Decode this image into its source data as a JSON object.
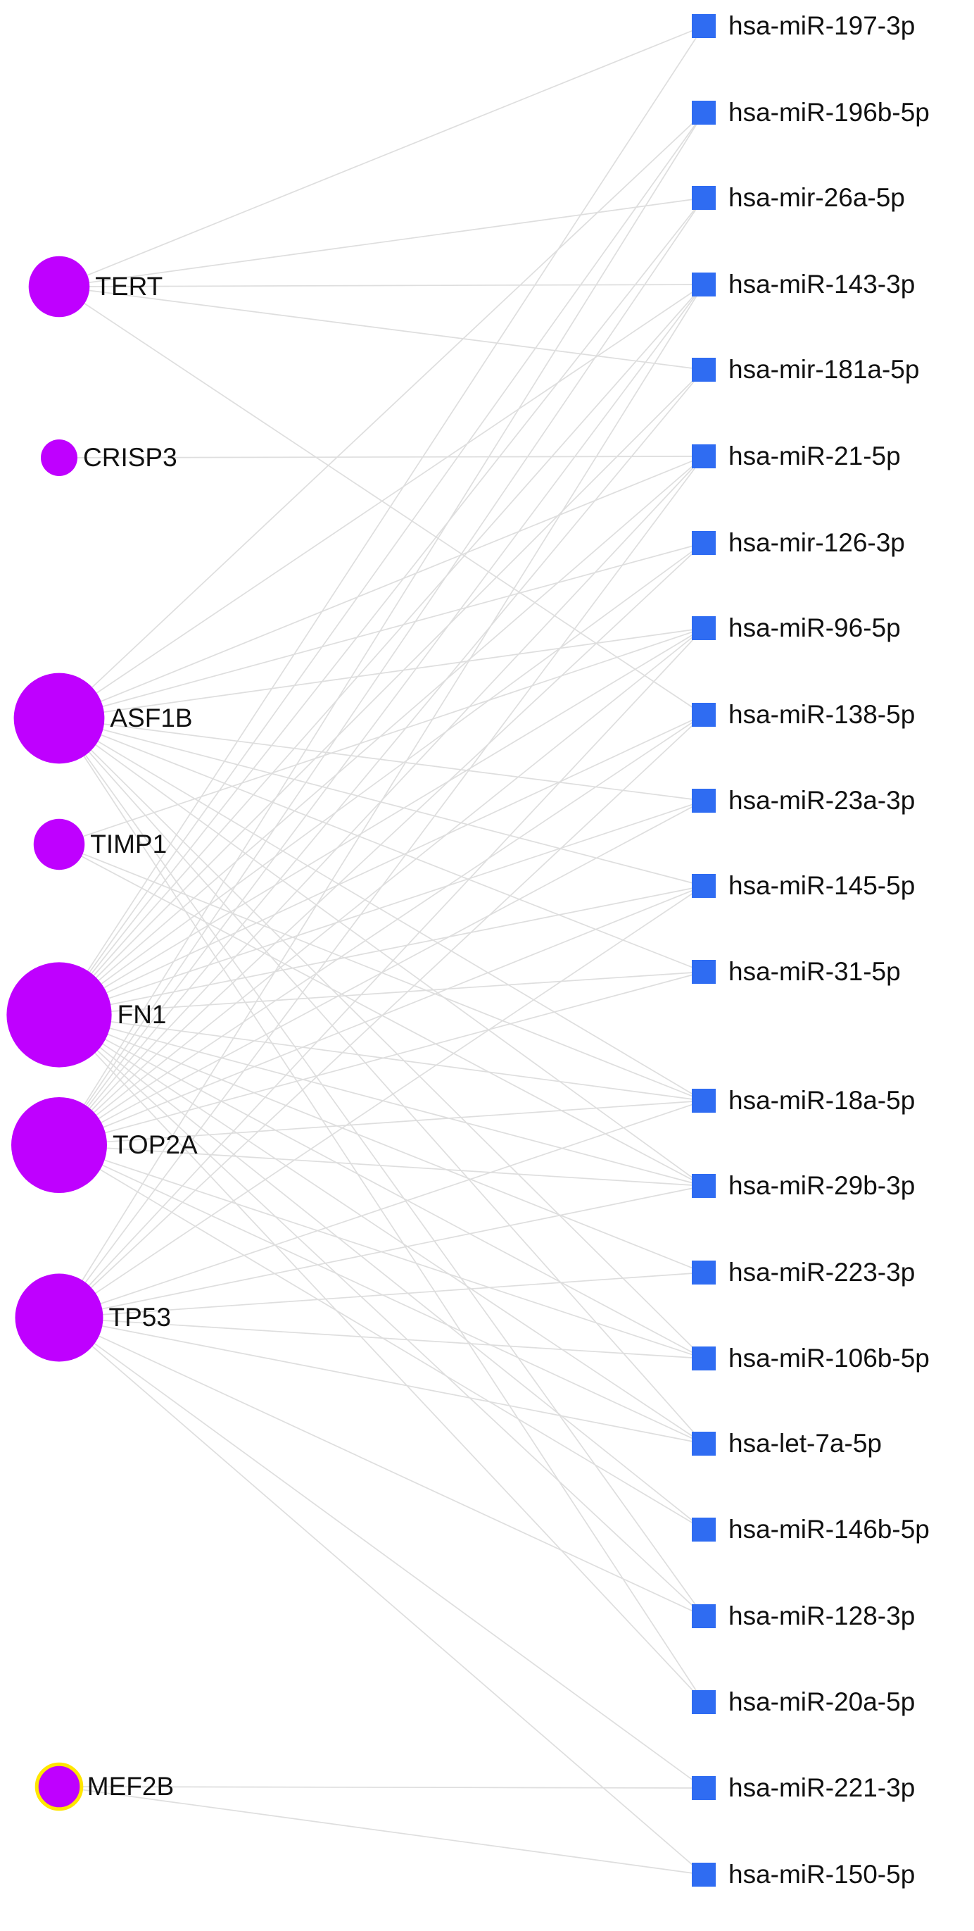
{
  "colors": {
    "gene_node": "#bf00ff",
    "mirna_node": "#2f6cf2",
    "edge": "#dedede",
    "selection_ring": "#ffe600",
    "background": "#ffffff"
  },
  "genes": [
    {
      "id": "TERT",
      "label": "TERT",
      "degree": 5
    },
    {
      "id": "CRISP3",
      "label": "CRISP3",
      "degree": 1
    },
    {
      "id": "ASF1B",
      "label": "ASF1B",
      "degree": 14
    },
    {
      "id": "TIMP1",
      "label": "TIMP1",
      "degree": 3
    },
    {
      "id": "FN1",
      "label": "FN1",
      "degree": 20
    },
    {
      "id": "TOP2A",
      "label": "TOP2A",
      "degree": 16
    },
    {
      "id": "TP53",
      "label": "TP53",
      "degree": 13
    },
    {
      "id": "MEF2B",
      "label": "MEF2B",
      "degree": 2,
      "selected": true
    }
  ],
  "mirnas": [
    "hsa-miR-197-3p",
    "hsa-miR-196b-5p",
    "hsa-mir-26a-5p",
    "hsa-miR-143-3p",
    "hsa-mir-181a-5p",
    "hsa-miR-21-5p",
    "hsa-mir-126-3p",
    "hsa-miR-96-5p",
    "hsa-miR-138-5p",
    "hsa-miR-23a-3p",
    "hsa-miR-145-5p",
    "hsa-miR-31-5p",
    "hsa-miR-18a-5p",
    "hsa-miR-29b-3p",
    "hsa-miR-223-3p",
    "hsa-miR-106b-5p",
    "hsa-let-7a-5p",
    "hsa-miR-146b-5p",
    "hsa-miR-128-3p",
    "hsa-miR-20a-5p",
    "hsa-miR-221-3p",
    "hsa-miR-150-5p"
  ],
  "edges": [
    [
      "TERT",
      "hsa-miR-197-3p"
    ],
    [
      "TERT",
      "hsa-mir-26a-5p"
    ],
    [
      "TERT",
      "hsa-miR-143-3p"
    ],
    [
      "TERT",
      "hsa-mir-181a-5p"
    ],
    [
      "TERT",
      "hsa-miR-138-5p"
    ],
    [
      "CRISP3",
      "hsa-miR-21-5p"
    ],
    [
      "ASF1B",
      "hsa-miR-196b-5p"
    ],
    [
      "ASF1B",
      "hsa-miR-143-3p"
    ],
    [
      "ASF1B",
      "hsa-miR-21-5p"
    ],
    [
      "ASF1B",
      "hsa-mir-126-3p"
    ],
    [
      "ASF1B",
      "hsa-miR-96-5p"
    ],
    [
      "ASF1B",
      "hsa-miR-23a-3p"
    ],
    [
      "ASF1B",
      "hsa-miR-145-5p"
    ],
    [
      "ASF1B",
      "hsa-miR-31-5p"
    ],
    [
      "ASF1B",
      "hsa-miR-18a-5p"
    ],
    [
      "ASF1B",
      "hsa-miR-29b-3p"
    ],
    [
      "ASF1B",
      "hsa-miR-106b-5p"
    ],
    [
      "ASF1B",
      "hsa-let-7a-5p"
    ],
    [
      "ASF1B",
      "hsa-miR-128-3p"
    ],
    [
      "ASF1B",
      "hsa-miR-20a-5p"
    ],
    [
      "TIMP1",
      "hsa-miR-96-5p"
    ],
    [
      "TIMP1",
      "hsa-miR-18a-5p"
    ],
    [
      "TIMP1",
      "hsa-miR-29b-3p"
    ],
    [
      "FN1",
      "hsa-miR-197-3p"
    ],
    [
      "FN1",
      "hsa-miR-196b-5p"
    ],
    [
      "FN1",
      "hsa-mir-26a-5p"
    ],
    [
      "FN1",
      "hsa-miR-143-3p"
    ],
    [
      "FN1",
      "hsa-mir-181a-5p"
    ],
    [
      "FN1",
      "hsa-miR-21-5p"
    ],
    [
      "FN1",
      "hsa-mir-126-3p"
    ],
    [
      "FN1",
      "hsa-miR-96-5p"
    ],
    [
      "FN1",
      "hsa-miR-138-5p"
    ],
    [
      "FN1",
      "hsa-miR-23a-3p"
    ],
    [
      "FN1",
      "hsa-miR-145-5p"
    ],
    [
      "FN1",
      "hsa-miR-31-5p"
    ],
    [
      "FN1",
      "hsa-miR-18a-5p"
    ],
    [
      "FN1",
      "hsa-miR-29b-3p"
    ],
    [
      "FN1",
      "hsa-miR-223-3p"
    ],
    [
      "FN1",
      "hsa-miR-106b-5p"
    ],
    [
      "FN1",
      "hsa-let-7a-5p"
    ],
    [
      "FN1",
      "hsa-miR-146b-5p"
    ],
    [
      "FN1",
      "hsa-miR-128-3p"
    ],
    [
      "FN1",
      "hsa-miR-20a-5p"
    ],
    [
      "TOP2A",
      "hsa-miR-196b-5p"
    ],
    [
      "TOP2A",
      "hsa-mir-26a-5p"
    ],
    [
      "TOP2A",
      "hsa-miR-143-3p"
    ],
    [
      "TOP2A",
      "hsa-mir-181a-5p"
    ],
    [
      "TOP2A",
      "hsa-miR-21-5p"
    ],
    [
      "TOP2A",
      "hsa-mir-126-3p"
    ],
    [
      "TOP2A",
      "hsa-miR-96-5p"
    ],
    [
      "TOP2A",
      "hsa-miR-138-5p"
    ],
    [
      "TOP2A",
      "hsa-miR-23a-3p"
    ],
    [
      "TOP2A",
      "hsa-miR-145-5p"
    ],
    [
      "TOP2A",
      "hsa-miR-31-5p"
    ],
    [
      "TOP2A",
      "hsa-miR-18a-5p"
    ],
    [
      "TOP2A",
      "hsa-miR-29b-3p"
    ],
    [
      "TOP2A",
      "hsa-miR-106b-5p"
    ],
    [
      "TOP2A",
      "hsa-let-7a-5p"
    ],
    [
      "TOP2A",
      "hsa-miR-146b-5p"
    ],
    [
      "TP53",
      "hsa-miR-143-3p"
    ],
    [
      "TP53",
      "hsa-miR-21-5p"
    ],
    [
      "TP53",
      "hsa-miR-96-5p"
    ],
    [
      "TP53",
      "hsa-miR-138-5p"
    ],
    [
      "TP53",
      "hsa-miR-145-5p"
    ],
    [
      "TP53",
      "hsa-miR-18a-5p"
    ],
    [
      "TP53",
      "hsa-miR-29b-3p"
    ],
    [
      "TP53",
      "hsa-miR-223-3p"
    ],
    [
      "TP53",
      "hsa-miR-106b-5p"
    ],
    [
      "TP53",
      "hsa-let-7a-5p"
    ],
    [
      "TP53",
      "hsa-miR-128-3p"
    ],
    [
      "TP53",
      "hsa-miR-221-3p"
    ],
    [
      "TP53",
      "hsa-miR-150-5p"
    ],
    [
      "MEF2B",
      "hsa-miR-221-3p"
    ],
    [
      "MEF2B",
      "hsa-miR-150-5p"
    ]
  ]
}
